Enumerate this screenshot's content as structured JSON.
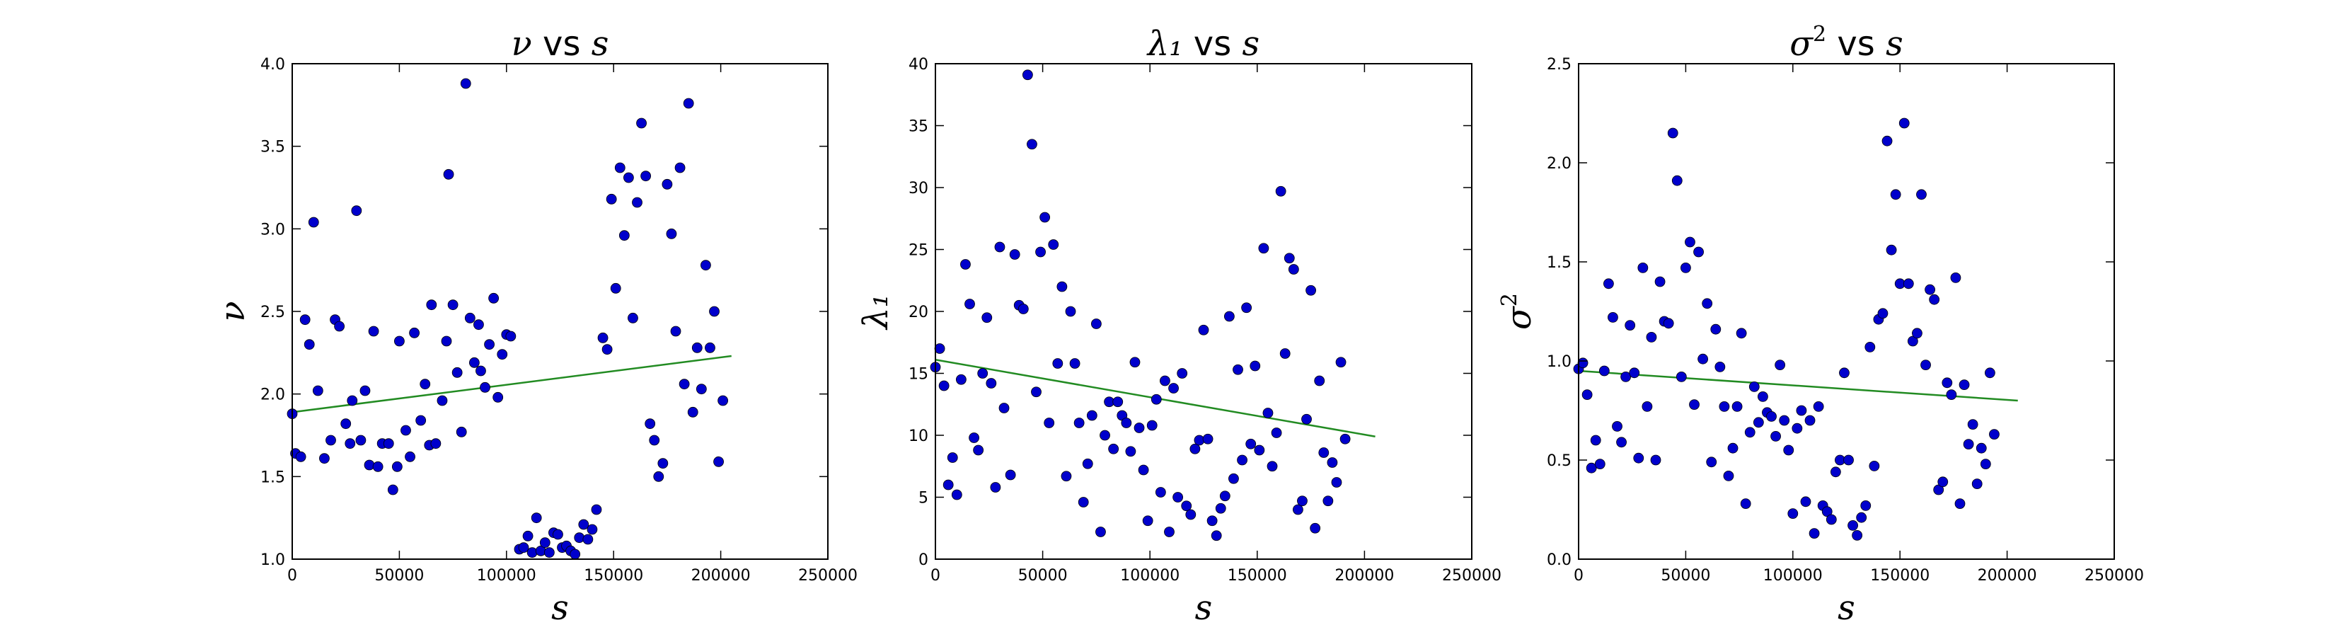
{
  "chart_data": [
    {
      "type": "scatter",
      "title": "ν vs s",
      "title_parts": {
        "lhs": "ν",
        "sup": "",
        "mid": " vs ",
        "rhs": "s"
      },
      "xlabel": "s",
      "ylabel": "ν",
      "ylabel_sup": "",
      "xlim": [
        0,
        250000
      ],
      "ylim": [
        1.0,
        4.0
      ],
      "xticks": [
        0,
        50000,
        100000,
        150000,
        200000,
        250000
      ],
      "yticks": [
        1.0,
        1.5,
        2.0,
        2.5,
        3.0,
        3.5,
        4.0
      ],
      "xtick_labels": [
        "0",
        "50000",
        "100000",
        "150000",
        "200000",
        "250000"
      ],
      "ytick_labels": [
        "1.0",
        "1.5",
        "2.0",
        "2.5",
        "3.0",
        "3.5",
        "4.0"
      ],
      "grid": false,
      "point_color": "#0000cc",
      "fit_color": "#228b22",
      "points": [
        [
          0,
          1.88
        ],
        [
          1500,
          1.64
        ],
        [
          4000,
          1.62
        ],
        [
          6000,
          2.45
        ],
        [
          8000,
          2.3
        ],
        [
          10000,
          3.04
        ],
        [
          12000,
          2.02
        ],
        [
          15000,
          1.61
        ],
        [
          18000,
          1.72
        ],
        [
          20000,
          2.45
        ],
        [
          22000,
          2.41
        ],
        [
          25000,
          1.82
        ],
        [
          27000,
          1.7
        ],
        [
          28000,
          1.96
        ],
        [
          30000,
          3.11
        ],
        [
          32000,
          1.72
        ],
        [
          34000,
          2.02
        ],
        [
          36000,
          1.57
        ],
        [
          38000,
          2.38
        ],
        [
          40000,
          1.56
        ],
        [
          42000,
          1.7
        ],
        [
          45000,
          1.7
        ],
        [
          47000,
          1.42
        ],
        [
          49000,
          1.56
        ],
        [
          50000,
          2.32
        ],
        [
          53000,
          1.78
        ],
        [
          55000,
          1.62
        ],
        [
          57000,
          2.37
        ],
        [
          60000,
          1.84
        ],
        [
          62000,
          2.06
        ],
        [
          64000,
          1.69
        ],
        [
          65000,
          2.54
        ],
        [
          67000,
          1.7
        ],
        [
          70000,
          1.96
        ],
        [
          72000,
          2.32
        ],
        [
          73000,
          3.33
        ],
        [
          75000,
          2.54
        ],
        [
          77000,
          2.13
        ],
        [
          79000,
          1.77
        ],
        [
          81000,
          3.88
        ],
        [
          83000,
          2.46
        ],
        [
          85000,
          2.19
        ],
        [
          87000,
          2.42
        ],
        [
          88000,
          2.14
        ],
        [
          90000,
          2.04
        ],
        [
          92000,
          2.3
        ],
        [
          94000,
          2.58
        ],
        [
          96000,
          1.98
        ],
        [
          98000,
          2.24
        ],
        [
          100000,
          2.36
        ],
        [
          102000,
          2.35
        ],
        [
          106000,
          1.06
        ],
        [
          108000,
          1.07
        ],
        [
          110000,
          1.14
        ],
        [
          112000,
          1.04
        ],
        [
          114000,
          1.25
        ],
        [
          116000,
          1.05
        ],
        [
          118000,
          1.1
        ],
        [
          120000,
          1.04
        ],
        [
          122000,
          1.16
        ],
        [
          124000,
          1.15
        ],
        [
          126000,
          1.07
        ],
        [
          128000,
          1.08
        ],
        [
          130000,
          1.05
        ],
        [
          132000,
          1.03
        ],
        [
          134000,
          1.13
        ],
        [
          136000,
          1.21
        ],
        [
          138000,
          1.12
        ],
        [
          140000,
          1.18
        ],
        [
          142000,
          1.3
        ],
        [
          145000,
          2.34
        ],
        [
          147000,
          2.27
        ],
        [
          149000,
          3.18
        ],
        [
          151000,
          2.64
        ],
        [
          153000,
          3.37
        ],
        [
          155000,
          2.96
        ],
        [
          157000,
          3.31
        ],
        [
          159000,
          2.46
        ],
        [
          161000,
          3.16
        ],
        [
          163000,
          3.64
        ],
        [
          165000,
          3.32
        ],
        [
          167000,
          1.82
        ],
        [
          169000,
          1.72
        ],
        [
          171000,
          1.5
        ],
        [
          173000,
          1.58
        ],
        [
          175000,
          3.27
        ],
        [
          177000,
          2.97
        ],
        [
          179000,
          2.38
        ],
        [
          181000,
          3.37
        ],
        [
          183000,
          2.06
        ],
        [
          185000,
          3.76
        ],
        [
          187000,
          1.89
        ],
        [
          189000,
          2.28
        ],
        [
          191000,
          2.03
        ],
        [
          193000,
          2.78
        ],
        [
          195000,
          2.28
        ],
        [
          197000,
          2.5
        ],
        [
          199000,
          1.59
        ],
        [
          201000,
          1.96
        ]
      ],
      "fit": [
        [
          0,
          1.89
        ],
        [
          205000,
          2.23
        ]
      ]
    },
    {
      "type": "scatter",
      "title": "λ1 vs s",
      "title_parts": {
        "lhs": "λ₁",
        "sup": "",
        "mid": " vs ",
        "rhs": "s"
      },
      "xlabel": "s",
      "ylabel": "λ₁",
      "ylabel_sup": "",
      "xlim": [
        0,
        250000
      ],
      "ylim": [
        0,
        40
      ],
      "xticks": [
        0,
        50000,
        100000,
        150000,
        200000,
        250000
      ],
      "yticks": [
        0,
        5,
        10,
        15,
        20,
        25,
        30,
        35,
        40
      ],
      "xtick_labels": [
        "0",
        "50000",
        "100000",
        "150000",
        "200000",
        "250000"
      ],
      "ytick_labels": [
        "0",
        "5",
        "10",
        "15",
        "20",
        "25",
        "30",
        "35",
        "40"
      ],
      "grid": false,
      "point_color": "#0000cc",
      "fit_color": "#228b22",
      "points": [
        [
          0,
          15.5
        ],
        [
          2000,
          17
        ],
        [
          4000,
          14
        ],
        [
          6000,
          6
        ],
        [
          8000,
          8.2
        ],
        [
          10000,
          5.2
        ],
        [
          12000,
          14.5
        ],
        [
          14000,
          23.8
        ],
        [
          16000,
          20.6
        ],
        [
          18000,
          9.8
        ],
        [
          20000,
          8.8
        ],
        [
          22000,
          15
        ],
        [
          24000,
          19.5
        ],
        [
          26000,
          14.2
        ],
        [
          28000,
          5.8
        ],
        [
          30000,
          25.2
        ],
        [
          32000,
          12.2
        ],
        [
          35000,
          6.8
        ],
        [
          37000,
          24.6
        ],
        [
          39000,
          20.5
        ],
        [
          41000,
          20.2
        ],
        [
          43000,
          39.1
        ],
        [
          45000,
          33.5
        ],
        [
          47000,
          13.5
        ],
        [
          49000,
          24.8
        ],
        [
          51000,
          27.6
        ],
        [
          53000,
          11
        ],
        [
          55000,
          25.4
        ],
        [
          57000,
          15.8
        ],
        [
          59000,
          22
        ],
        [
          61000,
          6.7
        ],
        [
          63000,
          20
        ],
        [
          65000,
          15.8
        ],
        [
          67000,
          11
        ],
        [
          69000,
          4.6
        ],
        [
          71000,
          7.7
        ],
        [
          73000,
          11.6
        ],
        [
          75000,
          19
        ],
        [
          77000,
          2.2
        ],
        [
          79000,
          10
        ],
        [
          81000,
          12.7
        ],
        [
          83000,
          8.9
        ],
        [
          85000,
          12.7
        ],
        [
          87000,
          11.6
        ],
        [
          89000,
          11
        ],
        [
          91000,
          8.7
        ],
        [
          93000,
          15.9
        ],
        [
          95000,
          10.6
        ],
        [
          97000,
          7.2
        ],
        [
          99000,
          3.1
        ],
        [
          101000,
          10.8
        ],
        [
          103000,
          12.9
        ],
        [
          105000,
          5.4
        ],
        [
          107000,
          14.4
        ],
        [
          109000,
          2.2
        ],
        [
          111000,
          13.8
        ],
        [
          113000,
          5
        ],
        [
          115000,
          15
        ],
        [
          117000,
          4.3
        ],
        [
          119000,
          3.6
        ],
        [
          121000,
          8.9
        ],
        [
          123000,
          9.6
        ],
        [
          125000,
          18.5
        ],
        [
          127000,
          9.7
        ],
        [
          129000,
          3.1
        ],
        [
          131000,
          1.9
        ],
        [
          133000,
          4.1
        ],
        [
          135000,
          5.1
        ],
        [
          137000,
          19.6
        ],
        [
          139000,
          6.5
        ],
        [
          141000,
          15.3
        ],
        [
          143000,
          8
        ],
        [
          145000,
          20.3
        ],
        [
          147000,
          9.3
        ],
        [
          149000,
          15.6
        ],
        [
          151000,
          8.8
        ],
        [
          153000,
          25.1
        ],
        [
          155000,
          11.8
        ],
        [
          157000,
          7.5
        ],
        [
          159000,
          10.2
        ],
        [
          161000,
          29.7
        ],
        [
          163000,
          16.6
        ],
        [
          165000,
          24.3
        ],
        [
          167000,
          23.4
        ],
        [
          169000,
          4
        ],
        [
          171000,
          4.7
        ],
        [
          173000,
          11.3
        ],
        [
          175000,
          21.7
        ],
        [
          177000,
          2.5
        ],
        [
          179000,
          14.4
        ],
        [
          181000,
          8.6
        ],
        [
          183000,
          4.7
        ],
        [
          185000,
          7.8
        ],
        [
          187000,
          6.2
        ],
        [
          189000,
          15.9
        ],
        [
          191000,
          9.7
        ]
      ],
      "fit": [
        [
          0,
          16.1
        ],
        [
          205000,
          9.9
        ]
      ]
    },
    {
      "type": "scatter",
      "title": "σ2 vs s",
      "title_parts": {
        "lhs": "σ",
        "sup": "2",
        "mid": " vs ",
        "rhs": "s"
      },
      "xlabel": "s",
      "ylabel": "σ",
      "ylabel_sup": "2",
      "xlim": [
        0,
        250000
      ],
      "ylim": [
        0.0,
        2.5
      ],
      "xticks": [
        0,
        50000,
        100000,
        150000,
        200000,
        250000
      ],
      "yticks": [
        0.0,
        0.5,
        1.0,
        1.5,
        2.0,
        2.5
      ],
      "xtick_labels": [
        "0",
        "50000",
        "100000",
        "150000",
        "200000",
        "250000"
      ],
      "ytick_labels": [
        "0.0",
        "0.5",
        "1.0",
        "1.5",
        "2.0",
        "2.5"
      ],
      "grid": false,
      "point_color": "#0000cc",
      "fit_color": "#228b22",
      "points": [
        [
          0,
          0.96
        ],
        [
          2000,
          0.99
        ],
        [
          4000,
          0.83
        ],
        [
          6000,
          0.46
        ],
        [
          8000,
          0.6
        ],
        [
          10000,
          0.48
        ],
        [
          12000,
          0.95
        ],
        [
          14000,
          1.39
        ],
        [
          16000,
          1.22
        ],
        [
          18000,
          0.67
        ],
        [
          20000,
          0.59
        ],
        [
          22000,
          0.92
        ],
        [
          24000,
          1.18
        ],
        [
          26000,
          0.94
        ],
        [
          28000,
          0.51
        ],
        [
          30000,
          1.47
        ],
        [
          32000,
          0.77
        ],
        [
          34000,
          1.12
        ],
        [
          36000,
          0.5
        ],
        [
          38000,
          1.4
        ],
        [
          40000,
          1.2
        ],
        [
          42000,
          1.19
        ],
        [
          44000,
          2.15
        ],
        [
          46000,
          1.91
        ],
        [
          48000,
          0.92
        ],
        [
          50000,
          1.47
        ],
        [
          52000,
          1.6
        ],
        [
          54000,
          0.78
        ],
        [
          56000,
          1.55
        ],
        [
          58000,
          1.01
        ],
        [
          60000,
          1.29
        ],
        [
          62000,
          0.49
        ],
        [
          64000,
          1.16
        ],
        [
          66000,
          0.97
        ],
        [
          68000,
          0.77
        ],
        [
          70000,
          0.42
        ],
        [
          72000,
          0.56
        ],
        [
          74000,
          0.77
        ],
        [
          76000,
          1.14
        ],
        [
          78000,
          0.28
        ],
        [
          80000,
          0.64
        ],
        [
          82000,
          0.87
        ],
        [
          84000,
          0.69
        ],
        [
          86000,
          0.82
        ],
        [
          88000,
          0.74
        ],
        [
          90000,
          0.72
        ],
        [
          92000,
          0.62
        ],
        [
          94000,
          0.98
        ],
        [
          96000,
          0.7
        ],
        [
          98000,
          0.55
        ],
        [
          100000,
          0.23
        ],
        [
          102000,
          0.66
        ],
        [
          104000,
          0.75
        ],
        [
          106000,
          0.29
        ],
        [
          108000,
          0.7
        ],
        [
          110000,
          0.13
        ],
        [
          112000,
          0.77
        ],
        [
          114000,
          0.27
        ],
        [
          116000,
          0.24
        ],
        [
          118000,
          0.2
        ],
        [
          120000,
          0.44
        ],
        [
          122000,
          0.5
        ],
        [
          124000,
          0.94
        ],
        [
          126000,
          0.5
        ],
        [
          128000,
          0.17
        ],
        [
          130000,
          0.12
        ],
        [
          132000,
          0.21
        ],
        [
          134000,
          0.27
        ],
        [
          136000,
          1.07
        ],
        [
          138000,
          0.47
        ],
        [
          140000,
          1.21
        ],
        [
          142000,
          1.24
        ],
        [
          144000,
          2.11
        ],
        [
          146000,
          1.56
        ],
        [
          148000,
          1.84
        ],
        [
          150000,
          1.39
        ],
        [
          152000,
          2.2
        ],
        [
          154000,
          1.39
        ],
        [
          156000,
          1.1
        ],
        [
          158000,
          1.14
        ],
        [
          160000,
          1.84
        ],
        [
          162000,
          0.98
        ],
        [
          164000,
          1.36
        ],
        [
          166000,
          1.31
        ],
        [
          168000,
          0.35
        ],
        [
          170000,
          0.39
        ],
        [
          172000,
          0.89
        ],
        [
          174000,
          0.83
        ],
        [
          176000,
          1.42
        ],
        [
          178000,
          0.28
        ],
        [
          180000,
          0.88
        ],
        [
          182000,
          0.58
        ],
        [
          184000,
          0.68
        ],
        [
          186000,
          0.38
        ],
        [
          188000,
          0.56
        ],
        [
          190000,
          0.48
        ],
        [
          192000,
          0.94
        ],
        [
          194000,
          0.63
        ]
      ],
      "fit": [
        [
          0,
          0.95
        ],
        [
          205000,
          0.8
        ]
      ]
    }
  ]
}
